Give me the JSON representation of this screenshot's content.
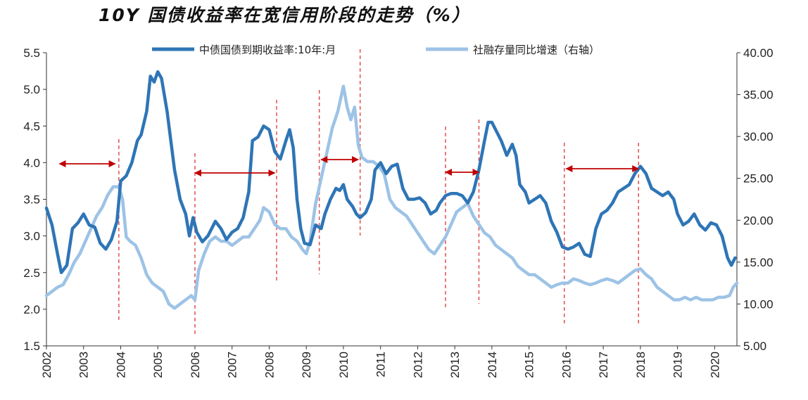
{
  "chart_data": {
    "type": "line",
    "title": "10Y 国债收益率在宽信用阶段的走势（%）",
    "x": [
      "2002",
      "2003",
      "2004",
      "2005",
      "2006",
      "2007",
      "2008",
      "2009",
      "2010",
      "2011",
      "2012",
      "2013",
      "2014",
      "2015",
      "2016",
      "2017",
      "2018",
      "2019",
      "2020"
    ],
    "ylim_left": [
      1.5,
      5.5
    ],
    "yticks_left": [
      "1.5",
      "2.0",
      "2.5",
      "3.0",
      "3.5",
      "4.0",
      "4.5",
      "5.0",
      "5.5"
    ],
    "ylim_right": [
      5.0,
      40.0
    ],
    "yticks_right": [
      "5.00",
      "10.00",
      "15.00",
      "20.00",
      "25.00",
      "30.00",
      "35.00",
      "40.00"
    ],
    "legend_position": "top",
    "series": [
      {
        "name": "中债国债到期收益率:10年:月",
        "axis": "left",
        "color": "#2E75B6",
        "points": [
          [
            2002.0,
            3.38
          ],
          [
            2002.15,
            3.15
          ],
          [
            2002.3,
            2.75
          ],
          [
            2002.4,
            2.5
          ],
          [
            2002.55,
            2.6
          ],
          [
            2002.7,
            3.1
          ],
          [
            2002.85,
            3.18
          ],
          [
            2003.0,
            3.3
          ],
          [
            2003.15,
            3.15
          ],
          [
            2003.3,
            3.12
          ],
          [
            2003.45,
            2.9
          ],
          [
            2003.6,
            2.82
          ],
          [
            2003.75,
            2.95
          ],
          [
            2003.9,
            3.2
          ],
          [
            2004.0,
            3.75
          ],
          [
            2004.15,
            3.82
          ],
          [
            2004.3,
            4.0
          ],
          [
            2004.45,
            4.3
          ],
          [
            2004.55,
            4.38
          ],
          [
            2004.7,
            4.7
          ],
          [
            2004.8,
            5.18
          ],
          [
            2004.9,
            5.1
          ],
          [
            2005.0,
            5.24
          ],
          [
            2005.1,
            5.15
          ],
          [
            2005.25,
            4.7
          ],
          [
            2005.35,
            4.3
          ],
          [
            2005.45,
            3.9
          ],
          [
            2005.6,
            3.5
          ],
          [
            2005.75,
            3.3
          ],
          [
            2005.85,
            3.0
          ],
          [
            2005.95,
            3.25
          ],
          [
            2006.05,
            3.05
          ],
          [
            2006.2,
            2.92
          ],
          [
            2006.35,
            3.0
          ],
          [
            2006.55,
            3.2
          ],
          [
            2006.7,
            3.1
          ],
          [
            2006.85,
            2.95
          ],
          [
            2007.0,
            3.05
          ],
          [
            2007.15,
            3.1
          ],
          [
            2007.3,
            3.25
          ],
          [
            2007.45,
            3.6
          ],
          [
            2007.55,
            4.3
          ],
          [
            2007.7,
            4.35
          ],
          [
            2007.85,
            4.5
          ],
          [
            2008.0,
            4.45
          ],
          [
            2008.15,
            4.15
          ],
          [
            2008.3,
            4.05
          ],
          [
            2008.45,
            4.3
          ],
          [
            2008.55,
            4.45
          ],
          [
            2008.65,
            4.2
          ],
          [
            2008.75,
            3.5
          ],
          [
            2008.85,
            3.1
          ],
          [
            2008.95,
            2.9
          ],
          [
            2009.1,
            2.88
          ],
          [
            2009.25,
            3.15
          ],
          [
            2009.4,
            3.1
          ],
          [
            2009.5,
            3.3
          ],
          [
            2009.65,
            3.5
          ],
          [
            2009.8,
            3.65
          ],
          [
            2009.9,
            3.62
          ],
          [
            2010.0,
            3.7
          ],
          [
            2010.1,
            3.5
          ],
          [
            2010.25,
            3.4
          ],
          [
            2010.35,
            3.3
          ],
          [
            2010.45,
            3.25
          ],
          [
            2010.6,
            3.32
          ],
          [
            2010.75,
            3.5
          ],
          [
            2010.85,
            3.9
          ],
          [
            2011.0,
            4.0
          ],
          [
            2011.15,
            3.85
          ],
          [
            2011.3,
            3.95
          ],
          [
            2011.45,
            3.98
          ],
          [
            2011.6,
            3.65
          ],
          [
            2011.75,
            3.5
          ],
          [
            2011.9,
            3.5
          ],
          [
            2012.05,
            3.52
          ],
          [
            2012.2,
            3.45
          ],
          [
            2012.35,
            3.3
          ],
          [
            2012.5,
            3.35
          ],
          [
            2012.6,
            3.45
          ],
          [
            2012.75,
            3.55
          ],
          [
            2012.9,
            3.58
          ],
          [
            2013.05,
            3.58
          ],
          [
            2013.2,
            3.55
          ],
          [
            2013.35,
            3.45
          ],
          [
            2013.5,
            3.6
          ],
          [
            2013.65,
            3.9
          ],
          [
            2013.8,
            4.3
          ],
          [
            2013.9,
            4.55
          ],
          [
            2014.0,
            4.55
          ],
          [
            2014.1,
            4.45
          ],
          [
            2014.25,
            4.3
          ],
          [
            2014.4,
            4.1
          ],
          [
            2014.55,
            4.25
          ],
          [
            2014.65,
            4.1
          ],
          [
            2014.75,
            3.7
          ],
          [
            2014.9,
            3.6
          ],
          [
            2015.0,
            3.45
          ],
          [
            2015.15,
            3.5
          ],
          [
            2015.3,
            3.55
          ],
          [
            2015.45,
            3.45
          ],
          [
            2015.6,
            3.2
          ],
          [
            2015.75,
            3.05
          ],
          [
            2015.9,
            2.85
          ],
          [
            2016.05,
            2.82
          ],
          [
            2016.2,
            2.85
          ],
          [
            2016.35,
            2.9
          ],
          [
            2016.5,
            2.75
          ],
          [
            2016.65,
            2.72
          ],
          [
            2016.8,
            3.1
          ],
          [
            2016.95,
            3.3
          ],
          [
            2017.1,
            3.35
          ],
          [
            2017.25,
            3.45
          ],
          [
            2017.4,
            3.6
          ],
          [
            2017.55,
            3.65
          ],
          [
            2017.7,
            3.7
          ],
          [
            2017.85,
            3.85
          ],
          [
            2018.0,
            3.95
          ],
          [
            2018.15,
            3.85
          ],
          [
            2018.3,
            3.65
          ],
          [
            2018.45,
            3.6
          ],
          [
            2018.6,
            3.55
          ],
          [
            2018.75,
            3.6
          ],
          [
            2018.9,
            3.5
          ],
          [
            2019.0,
            3.3
          ],
          [
            2019.15,
            3.15
          ],
          [
            2019.3,
            3.2
          ],
          [
            2019.45,
            3.3
          ],
          [
            2019.6,
            3.15
          ],
          [
            2019.75,
            3.08
          ],
          [
            2019.9,
            3.18
          ],
          [
            2020.05,
            3.15
          ],
          [
            2020.2,
            3.0
          ],
          [
            2020.35,
            2.7
          ],
          [
            2020.45,
            2.6
          ],
          [
            2020.55,
            2.7
          ]
        ]
      },
      {
        "name": "社融存量同比增速（右轴）",
        "axis": "right",
        "color": "#9DC3E6",
        "points": [
          [
            2002.0,
            11.0
          ],
          [
            2002.15,
            11.5
          ],
          [
            2002.3,
            12.0
          ],
          [
            2002.45,
            12.3
          ],
          [
            2002.6,
            13.5
          ],
          [
            2002.75,
            15.0
          ],
          [
            2002.9,
            16.0
          ],
          [
            2003.05,
            17.5
          ],
          [
            2003.2,
            19.0
          ],
          [
            2003.35,
            20.5
          ],
          [
            2003.5,
            21.5
          ],
          [
            2003.65,
            23.0
          ],
          [
            2003.8,
            24.0
          ],
          [
            2003.95,
            24.0
          ],
          [
            2004.05,
            22.5
          ],
          [
            2004.15,
            18.0
          ],
          [
            2004.25,
            17.5
          ],
          [
            2004.4,
            17.0
          ],
          [
            2004.55,
            15.5
          ],
          [
            2004.7,
            13.5
          ],
          [
            2004.85,
            12.5
          ],
          [
            2005.0,
            12.0
          ],
          [
            2005.15,
            11.5
          ],
          [
            2005.3,
            10.0
          ],
          [
            2005.45,
            9.5
          ],
          [
            2005.6,
            10.0
          ],
          [
            2005.75,
            10.5
          ],
          [
            2005.9,
            11.0
          ],
          [
            2006.0,
            10.5
          ],
          [
            2006.1,
            14.0
          ],
          [
            2006.25,
            16.0
          ],
          [
            2006.4,
            17.5
          ],
          [
            2006.55,
            18.0
          ],
          [
            2006.7,
            17.5
          ],
          [
            2006.85,
            17.5
          ],
          [
            2007.0,
            17.0
          ],
          [
            2007.15,
            17.5
          ],
          [
            2007.3,
            18.0
          ],
          [
            2007.45,
            18.0
          ],
          [
            2007.6,
            19.0
          ],
          [
            2007.75,
            20.0
          ],
          [
            2007.85,
            21.5
          ],
          [
            2008.0,
            21.0
          ],
          [
            2008.15,
            19.5
          ],
          [
            2008.3,
            19.0
          ],
          [
            2008.45,
            19.0
          ],
          [
            2008.6,
            18.0
          ],
          [
            2008.75,
            17.5
          ],
          [
            2008.9,
            16.5
          ],
          [
            2009.0,
            16.0
          ],
          [
            2009.1,
            17.5
          ],
          [
            2009.25,
            22.0
          ],
          [
            2009.4,
            25.0
          ],
          [
            2009.55,
            28.0
          ],
          [
            2009.7,
            31.0
          ],
          [
            2009.85,
            33.0
          ],
          [
            2010.0,
            36.0
          ],
          [
            2010.1,
            33.5
          ],
          [
            2010.2,
            32.0
          ],
          [
            2010.3,
            33.5
          ],
          [
            2010.4,
            29.0
          ],
          [
            2010.5,
            27.5
          ],
          [
            2010.65,
            27.0
          ],
          [
            2010.8,
            27.0
          ],
          [
            2010.95,
            26.5
          ],
          [
            2011.1,
            25.5
          ],
          [
            2011.25,
            22.5
          ],
          [
            2011.4,
            21.5
          ],
          [
            2011.55,
            21.0
          ],
          [
            2011.7,
            20.5
          ],
          [
            2011.85,
            19.5
          ],
          [
            2012.0,
            18.5
          ],
          [
            2012.15,
            17.5
          ],
          [
            2012.3,
            16.5
          ],
          [
            2012.45,
            16.0
          ],
          [
            2012.6,
            17.0
          ],
          [
            2012.75,
            18.0
          ],
          [
            2012.9,
            19.5
          ],
          [
            2013.05,
            21.0
          ],
          [
            2013.2,
            21.5
          ],
          [
            2013.35,
            22.0
          ],
          [
            2013.5,
            20.5
          ],
          [
            2013.65,
            19.5
          ],
          [
            2013.8,
            18.5
          ],
          [
            2013.95,
            18.0
          ],
          [
            2014.1,
            17.0
          ],
          [
            2014.25,
            16.5
          ],
          [
            2014.4,
            16.0
          ],
          [
            2014.55,
            15.5
          ],
          [
            2014.7,
            14.5
          ],
          [
            2014.85,
            14.0
          ],
          [
            2015.0,
            13.5
          ],
          [
            2015.15,
            13.5
          ],
          [
            2015.3,
            13.0
          ],
          [
            2015.45,
            12.5
          ],
          [
            2015.6,
            12.0
          ],
          [
            2015.75,
            12.3
          ],
          [
            2015.9,
            12.5
          ],
          [
            2016.05,
            12.5
          ],
          [
            2016.2,
            13.0
          ],
          [
            2016.35,
            12.8
          ],
          [
            2016.5,
            12.5
          ],
          [
            2016.65,
            12.3
          ],
          [
            2016.8,
            12.5
          ],
          [
            2016.95,
            12.8
          ],
          [
            2017.1,
            13.0
          ],
          [
            2017.25,
            12.8
          ],
          [
            2017.4,
            12.5
          ],
          [
            2017.55,
            13.0
          ],
          [
            2017.7,
            13.5
          ],
          [
            2017.85,
            14.0
          ],
          [
            2018.0,
            14.2
          ],
          [
            2018.15,
            13.5
          ],
          [
            2018.3,
            13.0
          ],
          [
            2018.45,
            12.0
          ],
          [
            2018.6,
            11.5
          ],
          [
            2018.75,
            11.0
          ],
          [
            2018.9,
            10.5
          ],
          [
            2019.05,
            10.5
          ],
          [
            2019.2,
            10.8
          ],
          [
            2019.35,
            10.5
          ],
          [
            2019.5,
            10.8
          ],
          [
            2019.65,
            10.5
          ],
          [
            2019.8,
            10.5
          ],
          [
            2019.95,
            10.5
          ],
          [
            2020.1,
            10.8
          ],
          [
            2020.25,
            10.8
          ],
          [
            2020.4,
            11.0
          ],
          [
            2020.5,
            12.0
          ],
          [
            2020.6,
            12.5
          ]
        ]
      }
    ],
    "dashed_markers": [
      2003.95,
      2006.0,
      2008.2,
      2009.35,
      2010.45,
      2012.75,
      2013.65,
      2015.95,
      2017.95
    ],
    "arrows": [
      [
        2002.35,
        2003.85
      ],
      [
        2006.0,
        2008.15
      ],
      [
        2009.4,
        2010.4
      ],
      [
        2012.75,
        2013.65
      ],
      [
        2016.0,
        2017.95
      ]
    ]
  }
}
